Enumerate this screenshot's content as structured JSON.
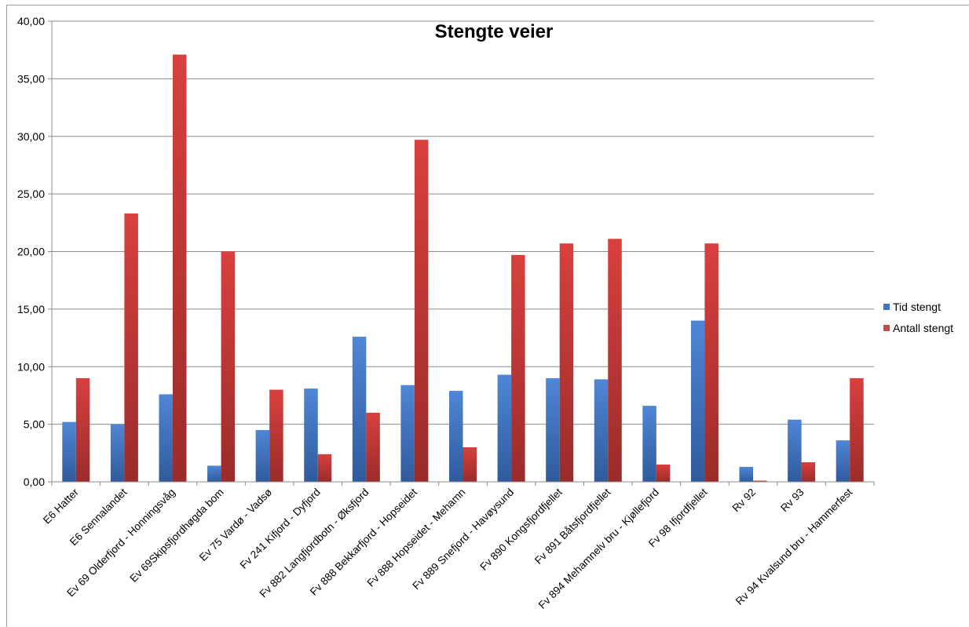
{
  "chart_data": {
    "type": "bar",
    "title": "Stengte veier",
    "xlabel": "",
    "ylabel": "",
    "ylim": [
      0,
      40
    ],
    "ytick_step": 5,
    "ytick_labels": [
      "0,00",
      "5,00",
      "10,00",
      "15,00",
      "20,00",
      "25,00",
      "30,00",
      "35,00",
      "40,00"
    ],
    "grid": true,
    "legend_position": "right",
    "categories": [
      "E6 Hatter",
      "E6 Sennalandet",
      "Ev 69 Olderfjord  - Honningsvåg",
      "Ev 69Skipsfjordhøgda bom",
      "Ev 75 Vardø - Vadsø",
      "Fv 241 Kifjord - Dyfjord",
      "Fv 882 Langfjordbotn - Øksfjord",
      "Fv 888 Bekkarfjord - Hopseidet",
      "Fv 888 Hopseidet - Mehamn",
      "Fv 889 Snefjord - Havøysund",
      "Fv 890 Kongsfjordfjellet",
      "Fv 891 Båtsfjordfjellet",
      "Fv 894 Mehamnelv bru - Kjøllefjord",
      "Fv 98 Ifjordfjellet",
      "Rv 92",
      "Rv 93",
      "Rv 94 Kvalsund bru - Hammerfest"
    ],
    "series": [
      {
        "name": "Tid stengt",
        "color": "#4472c4",
        "values": [
          5.2,
          5.0,
          7.6,
          1.4,
          4.5,
          8.1,
          12.6,
          8.4,
          7.9,
          9.3,
          9.0,
          8.9,
          6.6,
          14.0,
          1.3,
          5.4,
          3.6
        ]
      },
      {
        "name": "Antall stengt",
        "color": "#c0504d",
        "values": [
          9.0,
          23.3,
          37.1,
          20.0,
          8.0,
          2.4,
          6.0,
          29.7,
          3.0,
          19.7,
          20.7,
          21.1,
          1.5,
          20.7,
          0.1,
          1.7,
          9.0
        ]
      }
    ]
  }
}
